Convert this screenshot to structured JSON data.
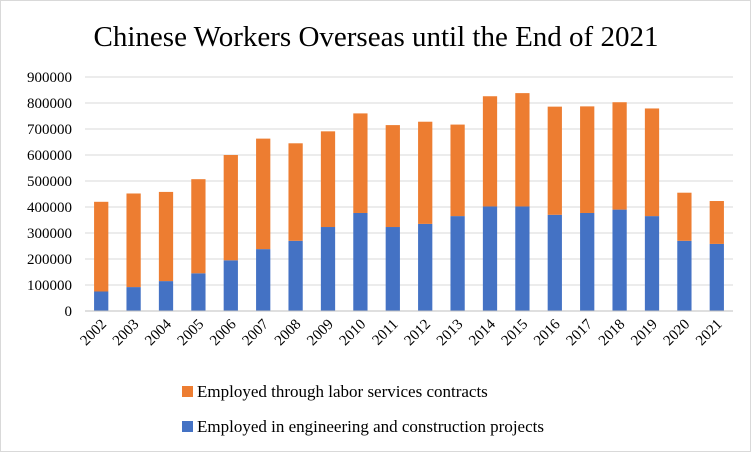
{
  "chart_data": {
    "type": "bar",
    "stacked": true,
    "title": "Chinese Workers Overseas until the End of 2021",
    "xlabel": "",
    "ylabel": "",
    "categories": [
      "2002",
      "2003",
      "2004",
      "2005",
      "2006",
      "2007",
      "2008",
      "2009",
      "2010",
      "2011",
      "2012",
      "2013",
      "2014",
      "2015",
      "2016",
      "2017",
      "2018",
      "2019",
      "2020",
      "2021"
    ],
    "series": [
      {
        "name": "Employed in engineering and construction projects",
        "color": "#4472c4",
        "values": [
          75000,
          92000,
          115000,
          145000,
          195000,
          238000,
          270000,
          323000,
          377000,
          323000,
          335000,
          365000,
          402000,
          402000,
          370000,
          377000,
          390000,
          365000,
          270000,
          258000
        ]
      },
      {
        "name": "Employed through labor services contracts",
        "color": "#ed7d31",
        "values": [
          345000,
          360000,
          343000,
          362000,
          405000,
          425000,
          375000,
          368000,
          383000,
          392000,
          393000,
          352000,
          424000,
          436000,
          416000,
          410000,
          413000,
          414000,
          185000,
          165000
        ]
      }
    ],
    "ylim": [
      0,
      900000
    ],
    "yticks": [
      0,
      100000,
      200000,
      300000,
      400000,
      500000,
      600000,
      700000,
      800000,
      900000
    ],
    "ytick_labels": [
      "0",
      "100000",
      "200000",
      "300000",
      "400000",
      "500000",
      "600000",
      "700000",
      "800000",
      "900000"
    ],
    "grid": true,
    "legend": {
      "position": "bottom",
      "entries": [
        {
          "label": "Employed through labor services contracts",
          "color": "#ed7d31"
        },
        {
          "label": "Employed in engineering and construction projects",
          "color": "#4472c4"
        }
      ]
    }
  }
}
